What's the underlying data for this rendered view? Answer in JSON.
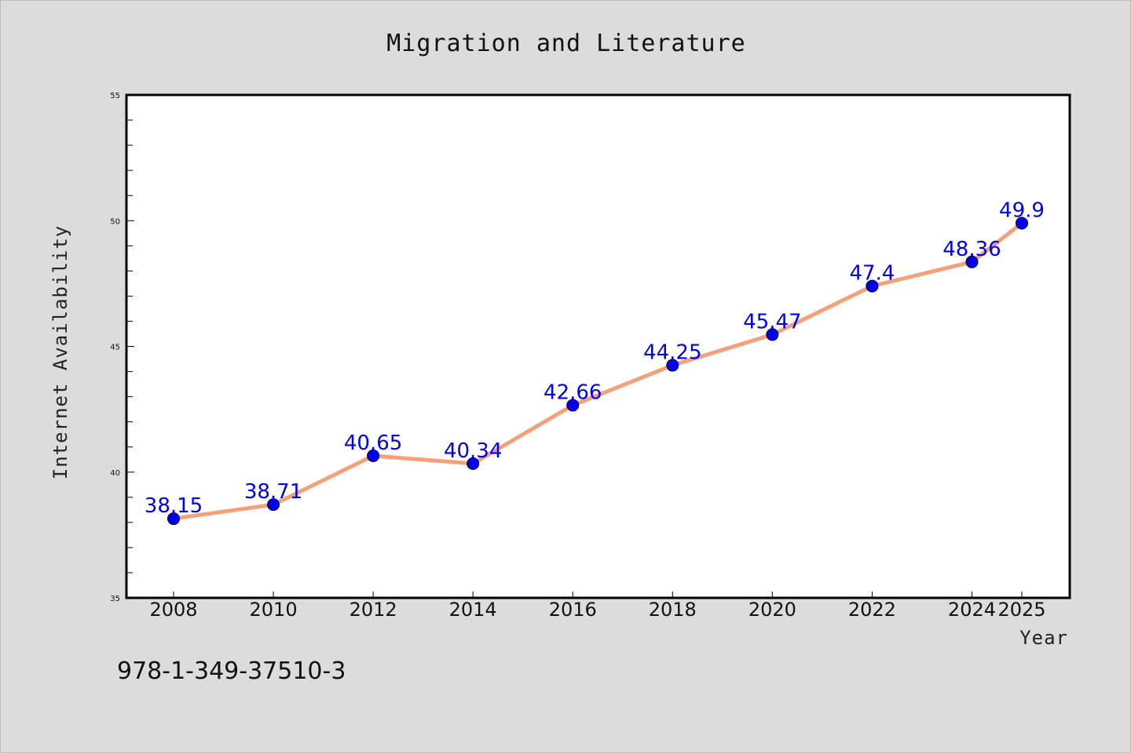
{
  "chart_data": {
    "type": "line",
    "title": "Migration and Literature",
    "xlabel": "Year",
    "ylabel": "Internet Availability",
    "x": [
      "2008",
      "2010",
      "2012",
      "2014",
      "2016",
      "2018",
      "2020",
      "2022",
      "2024",
      "2025"
    ],
    "series": [
      {
        "values": [
          38.15,
          38.71,
          40.65,
          40.34,
          42.66,
          44.25,
          45.47,
          47.4,
          48.36,
          49.9
        ],
        "labels": [
          "38.15",
          "38.71",
          "40.65",
          "40.34",
          "42.66",
          "44.25",
          "45.47",
          "47.4",
          "48.36",
          "49.9"
        ],
        "line_color": "#f4a07a",
        "marker_color": "#0000ee",
        "label_color": "#0000ee"
      }
    ],
    "ylim": [
      35,
      55
    ],
    "yticks": [
      "35",
      "40",
      "45",
      "50",
      "55"
    ],
    "grid": false,
    "legend": "none"
  },
  "footnote": "978-1-349-37510-3"
}
